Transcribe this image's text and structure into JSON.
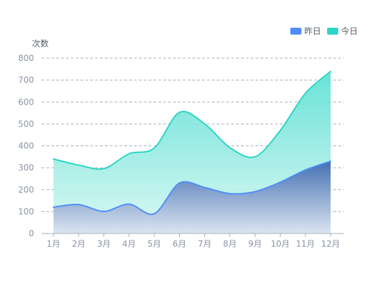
{
  "chart_data": {
    "type": "area",
    "ylabel": "次数",
    "categories": [
      "1月",
      "2月",
      "3月",
      "4月",
      "5月",
      "6月",
      "7月",
      "8月",
      "9月",
      "10月",
      "11月",
      "12月"
    ],
    "ylim": [
      0,
      800
    ],
    "yticks": [
      0,
      100,
      200,
      300,
      400,
      500,
      600,
      700,
      800
    ],
    "grid": true,
    "legend_position": "top-right",
    "series": [
      {
        "name": "昨日",
        "values": [
          120,
          132,
          101,
          134,
          90,
          230,
          210,
          182,
          191,
          234,
          290,
          330
        ],
        "color": "#4f8ef7"
      },
      {
        "name": "今日",
        "values": [
          340,
          312,
          296,
          364,
          390,
          553,
          500,
          392,
          350,
          470,
          640,
          740
        ],
        "color": "#2cd5c4"
      }
    ]
  },
  "colors": {
    "grid": "#a7aeb9",
    "axis": "#a7aeb9",
    "tick_text": "#8a93a3",
    "legend_text": "#555c66"
  }
}
